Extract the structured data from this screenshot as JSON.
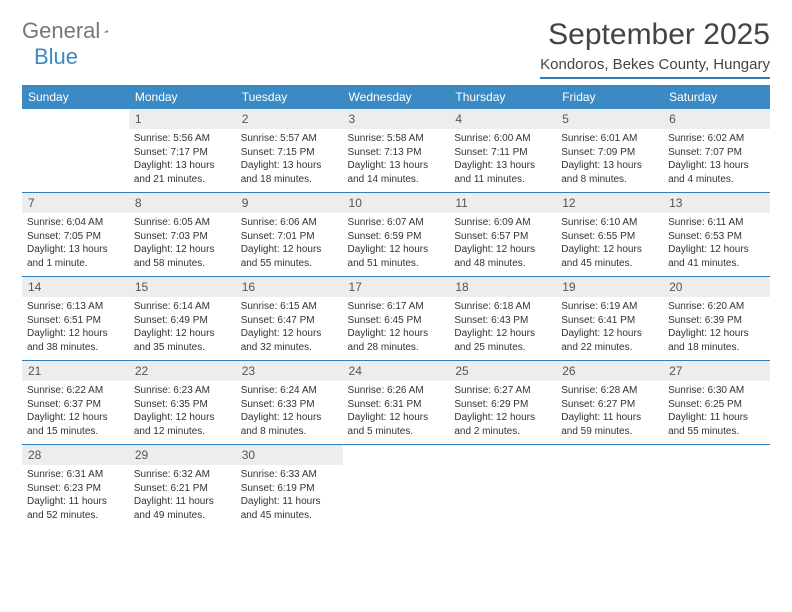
{
  "logo": {
    "part1": "General",
    "part2": "Blue"
  },
  "title": "September 2025",
  "location": "Kondoros, Bekes County, Hungary",
  "colors": {
    "header_bg": "#3b8ac4",
    "header_border": "#2e7fbf",
    "daynum_bg": "#ededed",
    "text": "#333333"
  },
  "daysOfWeek": [
    "Sunday",
    "Monday",
    "Tuesday",
    "Wednesday",
    "Thursday",
    "Friday",
    "Saturday"
  ],
  "weeks": [
    [
      null,
      {
        "n": "1",
        "sr": "Sunrise: 5:56 AM",
        "ss": "Sunset: 7:17 PM",
        "dl": "Daylight: 13 hours and 21 minutes."
      },
      {
        "n": "2",
        "sr": "Sunrise: 5:57 AM",
        "ss": "Sunset: 7:15 PM",
        "dl": "Daylight: 13 hours and 18 minutes."
      },
      {
        "n": "3",
        "sr": "Sunrise: 5:58 AM",
        "ss": "Sunset: 7:13 PM",
        "dl": "Daylight: 13 hours and 14 minutes."
      },
      {
        "n": "4",
        "sr": "Sunrise: 6:00 AM",
        "ss": "Sunset: 7:11 PM",
        "dl": "Daylight: 13 hours and 11 minutes."
      },
      {
        "n": "5",
        "sr": "Sunrise: 6:01 AM",
        "ss": "Sunset: 7:09 PM",
        "dl": "Daylight: 13 hours and 8 minutes."
      },
      {
        "n": "6",
        "sr": "Sunrise: 6:02 AM",
        "ss": "Sunset: 7:07 PM",
        "dl": "Daylight: 13 hours and 4 minutes."
      }
    ],
    [
      {
        "n": "7",
        "sr": "Sunrise: 6:04 AM",
        "ss": "Sunset: 7:05 PM",
        "dl": "Daylight: 13 hours and 1 minute."
      },
      {
        "n": "8",
        "sr": "Sunrise: 6:05 AM",
        "ss": "Sunset: 7:03 PM",
        "dl": "Daylight: 12 hours and 58 minutes."
      },
      {
        "n": "9",
        "sr": "Sunrise: 6:06 AM",
        "ss": "Sunset: 7:01 PM",
        "dl": "Daylight: 12 hours and 55 minutes."
      },
      {
        "n": "10",
        "sr": "Sunrise: 6:07 AM",
        "ss": "Sunset: 6:59 PM",
        "dl": "Daylight: 12 hours and 51 minutes."
      },
      {
        "n": "11",
        "sr": "Sunrise: 6:09 AM",
        "ss": "Sunset: 6:57 PM",
        "dl": "Daylight: 12 hours and 48 minutes."
      },
      {
        "n": "12",
        "sr": "Sunrise: 6:10 AM",
        "ss": "Sunset: 6:55 PM",
        "dl": "Daylight: 12 hours and 45 minutes."
      },
      {
        "n": "13",
        "sr": "Sunrise: 6:11 AM",
        "ss": "Sunset: 6:53 PM",
        "dl": "Daylight: 12 hours and 41 minutes."
      }
    ],
    [
      {
        "n": "14",
        "sr": "Sunrise: 6:13 AM",
        "ss": "Sunset: 6:51 PM",
        "dl": "Daylight: 12 hours and 38 minutes."
      },
      {
        "n": "15",
        "sr": "Sunrise: 6:14 AM",
        "ss": "Sunset: 6:49 PM",
        "dl": "Daylight: 12 hours and 35 minutes."
      },
      {
        "n": "16",
        "sr": "Sunrise: 6:15 AM",
        "ss": "Sunset: 6:47 PM",
        "dl": "Daylight: 12 hours and 32 minutes."
      },
      {
        "n": "17",
        "sr": "Sunrise: 6:17 AM",
        "ss": "Sunset: 6:45 PM",
        "dl": "Daylight: 12 hours and 28 minutes."
      },
      {
        "n": "18",
        "sr": "Sunrise: 6:18 AM",
        "ss": "Sunset: 6:43 PM",
        "dl": "Daylight: 12 hours and 25 minutes."
      },
      {
        "n": "19",
        "sr": "Sunrise: 6:19 AM",
        "ss": "Sunset: 6:41 PM",
        "dl": "Daylight: 12 hours and 22 minutes."
      },
      {
        "n": "20",
        "sr": "Sunrise: 6:20 AM",
        "ss": "Sunset: 6:39 PM",
        "dl": "Daylight: 12 hours and 18 minutes."
      }
    ],
    [
      {
        "n": "21",
        "sr": "Sunrise: 6:22 AM",
        "ss": "Sunset: 6:37 PM",
        "dl": "Daylight: 12 hours and 15 minutes."
      },
      {
        "n": "22",
        "sr": "Sunrise: 6:23 AM",
        "ss": "Sunset: 6:35 PM",
        "dl": "Daylight: 12 hours and 12 minutes."
      },
      {
        "n": "23",
        "sr": "Sunrise: 6:24 AM",
        "ss": "Sunset: 6:33 PM",
        "dl": "Daylight: 12 hours and 8 minutes."
      },
      {
        "n": "24",
        "sr": "Sunrise: 6:26 AM",
        "ss": "Sunset: 6:31 PM",
        "dl": "Daylight: 12 hours and 5 minutes."
      },
      {
        "n": "25",
        "sr": "Sunrise: 6:27 AM",
        "ss": "Sunset: 6:29 PM",
        "dl": "Daylight: 12 hours and 2 minutes."
      },
      {
        "n": "26",
        "sr": "Sunrise: 6:28 AM",
        "ss": "Sunset: 6:27 PM",
        "dl": "Daylight: 11 hours and 59 minutes."
      },
      {
        "n": "27",
        "sr": "Sunrise: 6:30 AM",
        "ss": "Sunset: 6:25 PM",
        "dl": "Daylight: 11 hours and 55 minutes."
      }
    ],
    [
      {
        "n": "28",
        "sr": "Sunrise: 6:31 AM",
        "ss": "Sunset: 6:23 PM",
        "dl": "Daylight: 11 hours and 52 minutes."
      },
      {
        "n": "29",
        "sr": "Sunrise: 6:32 AM",
        "ss": "Sunset: 6:21 PM",
        "dl": "Daylight: 11 hours and 49 minutes."
      },
      {
        "n": "30",
        "sr": "Sunrise: 6:33 AM",
        "ss": "Sunset: 6:19 PM",
        "dl": "Daylight: 11 hours and 45 minutes."
      },
      null,
      null,
      null,
      null
    ]
  ]
}
